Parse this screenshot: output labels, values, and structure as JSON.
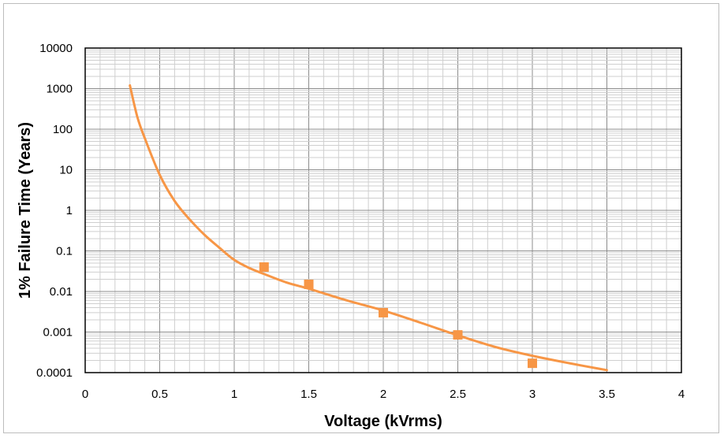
{
  "chart_data": {
    "type": "scatter",
    "title": "",
    "xlabel": "Voltage (kVrms)",
    "ylabel": "1% Failure Time (Years)",
    "xlim": [
      0,
      4
    ],
    "ylim": [
      0.0001,
      10000
    ],
    "y_scale": "log",
    "grid": true,
    "x_ticks": [
      "0",
      "0.5",
      "1",
      "1.5",
      "2",
      "2.5",
      "3",
      "3.5",
      "4"
    ],
    "y_ticks": [
      "0.0001",
      "0.001",
      "0.01",
      "0.1",
      "1",
      "10",
      "100",
      "1000",
      "10000"
    ],
    "series": [
      {
        "kind": "points",
        "marker": "square",
        "color": "#f79646",
        "x": [
          1.2,
          1.5,
          2.0,
          2.5,
          3.0
        ],
        "y": [
          0.04,
          0.015,
          0.003,
          0.00085,
          0.00017
        ]
      },
      {
        "kind": "line",
        "color": "#f79646",
        "x": [
          0.3,
          0.35,
          0.4,
          0.5,
          0.6,
          0.7,
          0.8,
          0.9,
          1.0,
          1.1,
          1.2,
          1.35,
          1.5,
          1.75,
          2.0,
          2.25,
          2.5,
          2.75,
          3.0,
          3.25,
          3.5
        ],
        "y": [
          1200,
          200,
          60,
          7.5,
          1.7,
          0.6,
          0.25,
          0.12,
          0.06,
          0.038,
          0.027,
          0.0167,
          0.0117,
          0.0061,
          0.0034,
          0.0017,
          0.00083,
          0.00043,
          0.00026,
          0.00017,
          0.000115
        ]
      }
    ]
  }
}
